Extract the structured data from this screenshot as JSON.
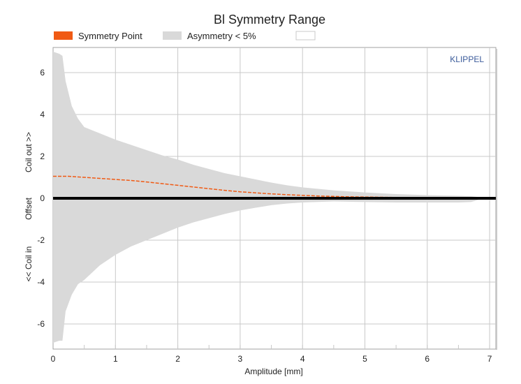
{
  "chart_data": {
    "type": "area",
    "title": "Bl Symmetry Range",
    "xlabel": "Amplitude [mm]",
    "ylabel_parts": [
      "<< Coil in",
      "Offset",
      "Coil out >>"
    ],
    "xlim": [
      0,
      7.1
    ],
    "ylim": [
      -7.2,
      7.2
    ],
    "x_ticks": [
      0,
      1,
      2,
      3,
      4,
      5,
      6,
      7
    ],
    "y_ticks": [
      -6,
      -4,
      -2,
      0,
      2,
      4,
      6
    ],
    "grid": true,
    "legend_position": "top-left",
    "watermark": "KLIPPEL",
    "series": [
      {
        "name": "Symmetry Point",
        "type": "line",
        "color": "#f05a14",
        "x": [
          0,
          0.25,
          0.5,
          0.75,
          1.0,
          1.25,
          1.5,
          1.75,
          2.0,
          2.25,
          2.5,
          2.75,
          3.0,
          3.25,
          3.5,
          3.75,
          4.0,
          4.25,
          4.5,
          4.75,
          5.0,
          5.5,
          6.0,
          6.5,
          6.9
        ],
        "y": [
          1.05,
          1.05,
          1.0,
          0.95,
          0.9,
          0.85,
          0.78,
          0.7,
          0.62,
          0.54,
          0.46,
          0.38,
          0.31,
          0.26,
          0.21,
          0.17,
          0.14,
          0.11,
          0.09,
          0.07,
          0.06,
          0.04,
          0.03,
          0.02,
          0.02
        ]
      },
      {
        "name": "Asymmetry < 5%",
        "type": "band",
        "color": "#d9d9d9",
        "x": [
          0,
          0.1,
          0.15,
          0.2,
          0.3,
          0.4,
          0.5,
          0.75,
          1.0,
          1.25,
          1.5,
          1.75,
          2.0,
          2.25,
          2.5,
          2.75,
          3.0,
          3.25,
          3.5,
          3.75,
          4.0,
          4.5,
          5.0,
          5.5,
          6.0,
          6.5,
          6.7,
          6.85
        ],
        "upper": [
          7.0,
          6.9,
          6.8,
          5.6,
          4.4,
          3.8,
          3.4,
          3.1,
          2.8,
          2.55,
          2.3,
          2.05,
          1.85,
          1.6,
          1.4,
          1.2,
          1.05,
          0.9,
          0.75,
          0.62,
          0.52,
          0.38,
          0.28,
          0.2,
          0.15,
          0.12,
          0.1,
          0.05
        ],
        "lower": [
          -6.9,
          -6.8,
          -6.8,
          -5.4,
          -4.6,
          -4.1,
          -3.9,
          -3.2,
          -2.7,
          -2.3,
          -2.0,
          -1.7,
          -1.4,
          -1.15,
          -0.95,
          -0.75,
          -0.58,
          -0.45,
          -0.33,
          -0.25,
          -0.2,
          -0.15,
          -0.18,
          -0.2,
          -0.2,
          -0.2,
          -0.18,
          -0.05
        ]
      },
      {
        "name": "",
        "type": "line",
        "color": "#000000",
        "x": [
          0,
          7.1
        ],
        "y": [
          0,
          0
        ]
      }
    ],
    "legend": [
      {
        "label": "Symmetry Point",
        "color": "#f05a14"
      },
      {
        "label": "Asymmetry < 5%",
        "color": "#d9d9d9"
      },
      {
        "label": "",
        "color": "#ffffff"
      }
    ]
  }
}
